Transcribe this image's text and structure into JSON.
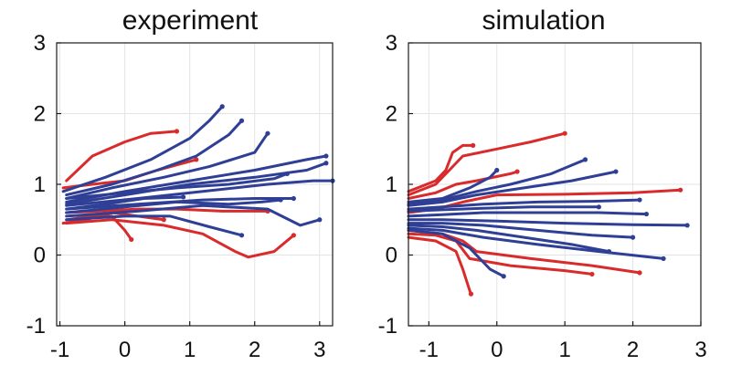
{
  "chart_data": [
    {
      "type": "line",
      "title": "experiment",
      "xlabel": "",
      "ylabel": "",
      "xlim": [
        -1.05,
        3.2
      ],
      "ylim": [
        -1,
        3
      ],
      "xticks": [
        -1,
        0,
        1,
        2,
        3
      ],
      "yticks": [
        -1,
        0,
        1,
        2,
        3
      ],
      "grid": true,
      "series": [
        {
          "color": "#d92b2b",
          "x": [
            -0.9,
            -0.5,
            0.0,
            0.4,
            0.8
          ],
          "y": [
            1.05,
            1.4,
            1.6,
            1.72,
            1.75
          ]
        },
        {
          "color": "#d92b2b",
          "x": [
            -0.95,
            -0.5,
            0.0,
            0.5,
            1.1
          ],
          "y": [
            0.95,
            1.0,
            1.05,
            1.2,
            1.35
          ]
        },
        {
          "color": "#d92b2b",
          "x": [
            -0.95,
            -0.6,
            -0.2,
            0.2,
            0.6
          ],
          "y": [
            0.45,
            0.5,
            0.6,
            0.55,
            0.5
          ]
        },
        {
          "color": "#d92b2b",
          "x": [
            -0.9,
            -0.5,
            -0.2,
            0.0,
            0.1
          ],
          "y": [
            0.5,
            0.55,
            0.55,
            0.35,
            0.22
          ]
        },
        {
          "color": "#d92b2b",
          "x": [
            -0.9,
            -0.4,
            0.2,
            0.8,
            1.5,
            2.2
          ],
          "y": [
            0.6,
            0.62,
            0.65,
            0.65,
            0.62,
            0.62
          ]
        },
        {
          "color": "#d92b2b",
          "x": [
            -0.9,
            -0.2,
            0.6,
            1.2,
            1.7,
            1.9,
            2.3,
            2.6
          ],
          "y": [
            0.45,
            0.5,
            0.42,
            0.3,
            0.05,
            -0.03,
            0.05,
            0.28
          ]
        },
        {
          "color": "#2f3f96",
          "x": [
            -0.95,
            -0.3,
            0.4,
            1.0,
            1.3,
            1.5
          ],
          "y": [
            0.9,
            1.1,
            1.35,
            1.65,
            1.9,
            2.1
          ]
        },
        {
          "color": "#2f3f96",
          "x": [
            -0.9,
            -0.2,
            0.5,
            1.1,
            1.6,
            1.8
          ],
          "y": [
            0.85,
            1.0,
            1.2,
            1.4,
            1.7,
            1.9
          ]
        },
        {
          "color": "#2f3f96",
          "x": [
            -0.9,
            -0.2,
            0.6,
            1.3,
            2.0,
            2.2
          ],
          "y": [
            0.8,
            0.95,
            1.1,
            1.25,
            1.45,
            1.72
          ]
        },
        {
          "color": "#2f3f96",
          "x": [
            -0.9,
            0.0,
            1.0,
            2.0,
            2.8,
            3.1
          ],
          "y": [
            0.75,
            0.9,
            1.05,
            1.2,
            1.35,
            1.4
          ]
        },
        {
          "color": "#2f3f96",
          "x": [
            -0.9,
            0.0,
            1.0,
            2.0,
            2.8,
            3.1
          ],
          "y": [
            0.72,
            0.85,
            1.0,
            1.1,
            1.2,
            1.3
          ]
        },
        {
          "color": "#2f3f96",
          "x": [
            -0.9,
            0.2,
            1.2,
            2.2,
            2.9,
            3.2
          ],
          "y": [
            0.7,
            0.8,
            0.9,
            1.0,
            1.05,
            1.05
          ]
        },
        {
          "color": "#2f3f96",
          "x": [
            -0.9,
            0.0,
            0.8,
            1.6,
            2.3,
            2.5
          ],
          "y": [
            0.8,
            0.88,
            0.95,
            1.0,
            1.08,
            1.15
          ]
        },
        {
          "color": "#2f3f96",
          "x": [
            -0.9,
            0.2,
            1.2,
            2.0,
            2.6
          ],
          "y": [
            0.65,
            0.72,
            0.78,
            0.8,
            0.8
          ]
        },
        {
          "color": "#2f3f96",
          "x": [
            -0.9,
            0.0,
            0.8,
            1.6,
            2.1,
            2.4
          ],
          "y": [
            0.6,
            0.68,
            0.75,
            0.72,
            0.75,
            0.78
          ]
        },
        {
          "color": "#2f3f96",
          "x": [
            -0.9,
            0.2,
            1.2,
            2.2,
            2.7,
            3.0
          ],
          "y": [
            0.55,
            0.62,
            0.7,
            0.65,
            0.42,
            0.5
          ]
        },
        {
          "color": "#2f3f96",
          "x": [
            -0.9,
            0.0,
            0.7,
            1.3,
            1.8
          ],
          "y": [
            0.5,
            0.55,
            0.55,
            0.4,
            0.28
          ]
        },
        {
          "color": "#2f3f96",
          "x": [
            -0.9,
            -0.3,
            0.3,
            0.9
          ],
          "y": [
            0.65,
            0.72,
            0.8,
            0.82
          ]
        }
      ]
    },
    {
      "type": "line",
      "title": "simulation",
      "xlabel": "",
      "ylabel": "",
      "xlim": [
        -1.3,
        3.0
      ],
      "ylim": [
        -1,
        3
      ],
      "xticks": [
        -1,
        0,
        1,
        2,
        3
      ],
      "yticks": [
        -1,
        0,
        1,
        2,
        3
      ],
      "grid": true,
      "series": [
        {
          "color": "#d92b2b",
          "x": [
            -1.3,
            -0.9,
            -0.75,
            -0.65,
            -0.5,
            -0.35
          ],
          "y": [
            0.9,
            1.05,
            1.2,
            1.45,
            1.55,
            1.55
          ]
        },
        {
          "color": "#d92b2b",
          "x": [
            -1.3,
            -0.9,
            -0.7,
            -0.5,
            0.0,
            0.5,
            1.0
          ],
          "y": [
            0.85,
            1.0,
            1.2,
            1.4,
            1.5,
            1.6,
            1.72
          ]
        },
        {
          "color": "#d92b2b",
          "x": [
            -1.3,
            -0.9,
            -0.6,
            -0.3,
            0.2,
            0.3
          ],
          "y": [
            0.8,
            0.88,
            1.0,
            1.05,
            1.15,
            1.18
          ]
        },
        {
          "color": "#d92b2b",
          "x": [
            -1.3,
            -0.9,
            -0.5,
            0.0,
            1.0,
            2.0,
            2.7
          ],
          "y": [
            0.6,
            0.65,
            0.75,
            0.85,
            0.86,
            0.88,
            0.92
          ]
        },
        {
          "color": "#d92b2b",
          "x": [
            -1.3,
            -0.9,
            -0.6,
            -0.5,
            -0.4,
            -0.38
          ],
          "y": [
            0.25,
            0.2,
            0.05,
            -0.2,
            -0.5,
            -0.55
          ]
        },
        {
          "color": "#d92b2b",
          "x": [
            -1.3,
            -0.9,
            -0.6,
            -0.4,
            0.2,
            1.0,
            1.4
          ],
          "y": [
            0.3,
            0.28,
            0.2,
            -0.05,
            -0.15,
            -0.22,
            -0.27
          ]
        },
        {
          "color": "#d92b2b",
          "x": [
            -1.3,
            -0.8,
            -0.5,
            -0.3,
            0.5,
            1.4,
            2.1
          ],
          "y": [
            0.35,
            0.3,
            0.2,
            0.05,
            -0.05,
            -0.15,
            -0.25
          ]
        },
        {
          "color": "#2f3f96",
          "x": [
            -1.3,
            -0.8,
            -0.4,
            -0.1,
            0.0
          ],
          "y": [
            0.75,
            0.8,
            0.95,
            1.1,
            1.2
          ]
        },
        {
          "color": "#2f3f96",
          "x": [
            -1.3,
            -0.8,
            -0.3,
            0.2,
            0.8,
            1.3
          ],
          "y": [
            0.72,
            0.78,
            0.9,
            1.0,
            1.15,
            1.35
          ]
        },
        {
          "color": "#2f3f96",
          "x": [
            -1.3,
            -0.8,
            -0.3,
            0.4,
            1.1,
            1.75
          ],
          "y": [
            0.7,
            0.75,
            0.85,
            0.95,
            1.05,
            1.18
          ]
        },
        {
          "color": "#2f3f96",
          "x": [
            -1.3,
            -0.8,
            -0.2,
            0.6,
            1.4,
            2.1
          ],
          "y": [
            0.65,
            0.68,
            0.72,
            0.75,
            0.76,
            0.78
          ]
        },
        {
          "color": "#2f3f96",
          "x": [
            -1.3,
            -0.8,
            -0.2,
            0.5,
            1.0,
            1.5
          ],
          "y": [
            0.62,
            0.64,
            0.66,
            0.68,
            0.68,
            0.68
          ]
        },
        {
          "color": "#2f3f96",
          "x": [
            -1.3,
            -0.8,
            -0.2,
            0.5,
            1.5,
            2.2
          ],
          "y": [
            0.55,
            0.57,
            0.6,
            0.6,
            0.6,
            0.58
          ]
        },
        {
          "color": "#2f3f96",
          "x": [
            -1.3,
            -0.8,
            0.0,
            1.0,
            2.0,
            2.8
          ],
          "y": [
            0.5,
            0.5,
            0.48,
            0.45,
            0.43,
            0.42
          ]
        },
        {
          "color": "#2f3f96",
          "x": [
            -1.3,
            -0.8,
            -0.2,
            0.6,
            1.4,
            2.0
          ],
          "y": [
            0.45,
            0.45,
            0.42,
            0.35,
            0.28,
            0.25
          ]
        },
        {
          "color": "#2f3f96",
          "x": [
            -1.3,
            -0.8,
            -0.3,
            0.4,
            1.1,
            1.65
          ],
          "y": [
            0.42,
            0.4,
            0.35,
            0.25,
            0.15,
            0.05
          ]
        },
        {
          "color": "#2f3f96",
          "x": [
            -1.3,
            -0.8,
            -0.2,
            0.6,
            1.5,
            2.45
          ],
          "y": [
            0.38,
            0.35,
            0.25,
            0.15,
            0.05,
            -0.05
          ]
        },
        {
          "color": "#2f3f96",
          "x": [
            -1.3,
            -0.8,
            -0.4,
            -0.1,
            0.1
          ],
          "y": [
            0.35,
            0.3,
            0.1,
            -0.2,
            -0.3
          ]
        }
      ]
    }
  ]
}
